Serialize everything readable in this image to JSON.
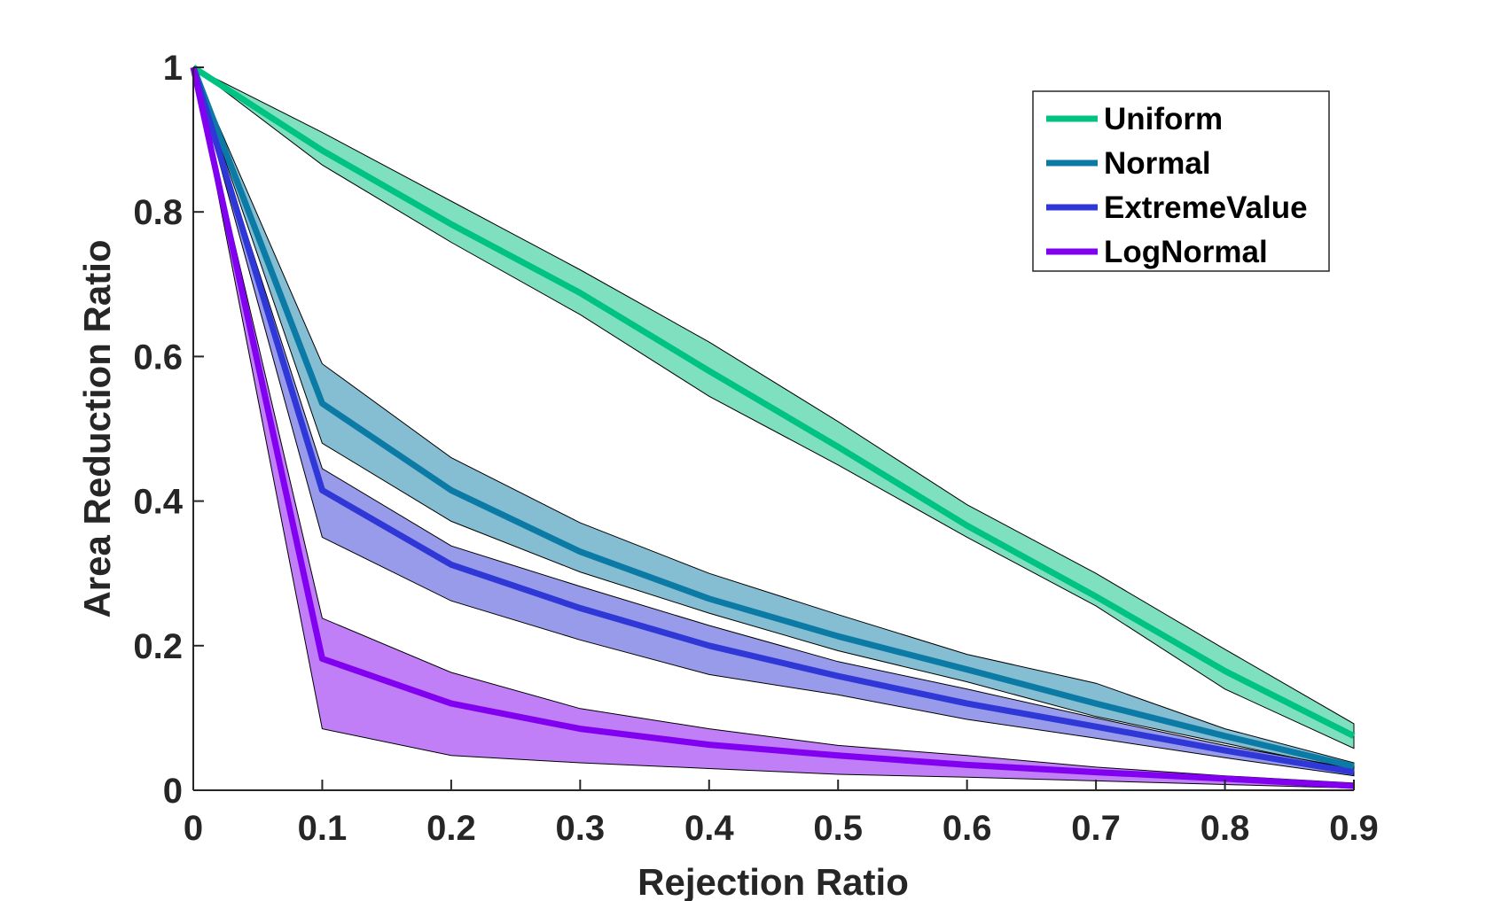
{
  "chart_data": {
    "type": "line",
    "title": "",
    "xlabel": "Rejection Ratio",
    "ylabel": "Area Reduction Ratio",
    "xlim": [
      0,
      0.9
    ],
    "ylim": [
      0,
      1
    ],
    "x": [
      0,
      0.1,
      0.2,
      0.3,
      0.4,
      0.5,
      0.6,
      0.7,
      0.8,
      0.9
    ],
    "xticks": [
      "0",
      "0.1",
      "0.2",
      "0.3",
      "0.4",
      "0.5",
      "0.6",
      "0.7",
      "0.8",
      "0.9"
    ],
    "yticks": [
      "0",
      "0.2",
      "0.4",
      "0.6",
      "0.8",
      "1"
    ],
    "grid": false,
    "legend_position": "top-right",
    "series": [
      {
        "name": "Uniform",
        "color": "#00c282",
        "fill": "#00c282",
        "values": [
          1,
          0.885,
          0.783,
          0.688,
          0.58,
          0.475,
          0.366,
          0.268,
          0.165,
          0.075
        ],
        "upper": [
          1,
          0.91,
          0.815,
          0.72,
          0.62,
          0.51,
          0.395,
          0.3,
          0.195,
          0.092
        ],
        "lower": [
          1,
          0.865,
          0.758,
          0.658,
          0.545,
          0.45,
          0.35,
          0.255,
          0.14,
          0.058
        ]
      },
      {
        "name": "Normal",
        "color": "#0b7ba6",
        "fill": "#0b7ba6",
        "values": [
          1,
          0.535,
          0.415,
          0.33,
          0.265,
          0.213,
          0.167,
          0.12,
          0.075,
          0.033
        ],
        "upper": [
          1,
          0.59,
          0.46,
          0.37,
          0.3,
          0.243,
          0.188,
          0.148,
          0.085,
          0.038
        ],
        "lower": [
          1,
          0.48,
          0.372,
          0.302,
          0.245,
          0.193,
          0.15,
          0.102,
          0.065,
          0.028
        ]
      },
      {
        "name": "ExtremeValue",
        "color": "#2f37d6",
        "fill": "#2f37d6",
        "values": [
          1,
          0.415,
          0.312,
          0.252,
          0.2,
          0.158,
          0.12,
          0.088,
          0.055,
          0.025
        ],
        "upper": [
          1,
          0.445,
          0.338,
          0.282,
          0.228,
          0.178,
          0.14,
          0.1,
          0.062,
          0.03
        ],
        "lower": [
          1,
          0.35,
          0.262,
          0.208,
          0.16,
          0.132,
          0.098,
          0.072,
          0.045,
          0.02
        ]
      },
      {
        "name": "LogNormal",
        "color": "#8200f0",
        "fill": "#8200f0",
        "values": [
          1,
          0.182,
          0.12,
          0.085,
          0.063,
          0.048,
          0.035,
          0.025,
          0.016,
          0.006
        ],
        "upper": [
          1,
          0.238,
          0.163,
          0.113,
          0.085,
          0.062,
          0.048,
          0.032,
          0.02,
          0.01
        ],
        "lower": [
          1,
          0.085,
          0.048,
          0.038,
          0.03,
          0.022,
          0.018,
          0.013,
          0.008,
          0.003
        ]
      }
    ]
  }
}
